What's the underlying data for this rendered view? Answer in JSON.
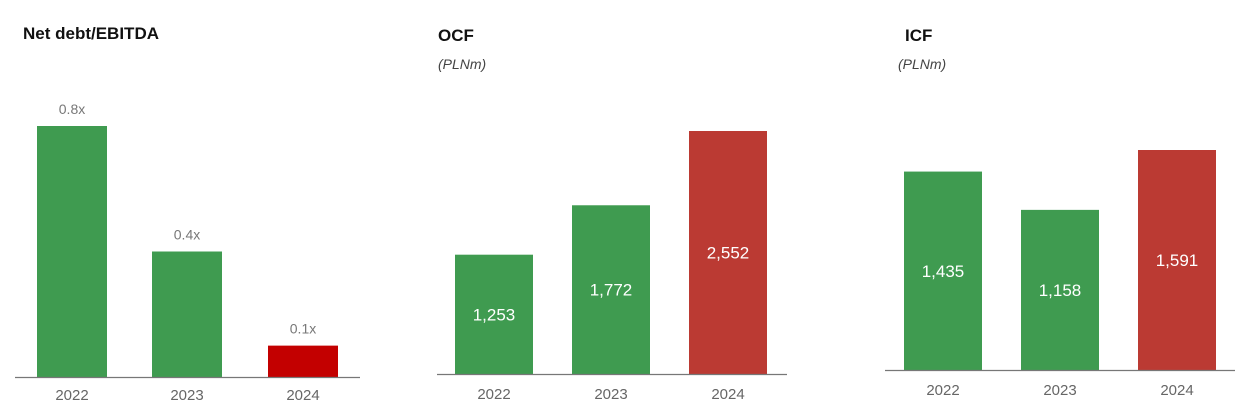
{
  "colors": {
    "green": "#3f9b50",
    "red": "#bb3a33",
    "dark_red": "#c30000",
    "axis": "#777777",
    "tick_label": "#666666",
    "value_label_outside": "#777777",
    "value_label_inside": "#ffffff"
  },
  "chart_data": [
    {
      "type": "bar",
      "title": "Net debt/EBITDA",
      "unit": "",
      "categories": [
        "2022",
        "2023",
        "2024"
      ],
      "values": [
        0.8,
        0.4,
        0.1
      ],
      "value_labels": [
        "0.8x",
        "0.4x",
        "0.1x"
      ],
      "bar_colors": [
        "green",
        "green",
        "dark_red"
      ],
      "label_position": "outside",
      "ylim": [
        0,
        0.9
      ]
    },
    {
      "type": "bar",
      "title": "OCF",
      "unit": "(PLNm)",
      "categories": [
        "2022",
        "2023",
        "2024"
      ],
      "values": [
        1253,
        1772,
        2552
      ],
      "value_labels": [
        "1,253",
        "1,772",
        "2,552"
      ],
      "bar_colors": [
        "green",
        "green",
        "red"
      ],
      "label_position": "inside",
      "ylim": [
        0,
        2700
      ]
    },
    {
      "type": "bar",
      "title": "ICF",
      "unit": "(PLNm)",
      "categories": [
        "2022",
        "2023",
        "2024"
      ],
      "values": [
        1435,
        1158,
        1591
      ],
      "value_labels": [
        "1,435",
        "1,158",
        "1,591"
      ],
      "bar_colors": [
        "green",
        "green",
        "red"
      ],
      "label_position": "inside",
      "ylim": [
        0,
        1930
      ]
    }
  ]
}
